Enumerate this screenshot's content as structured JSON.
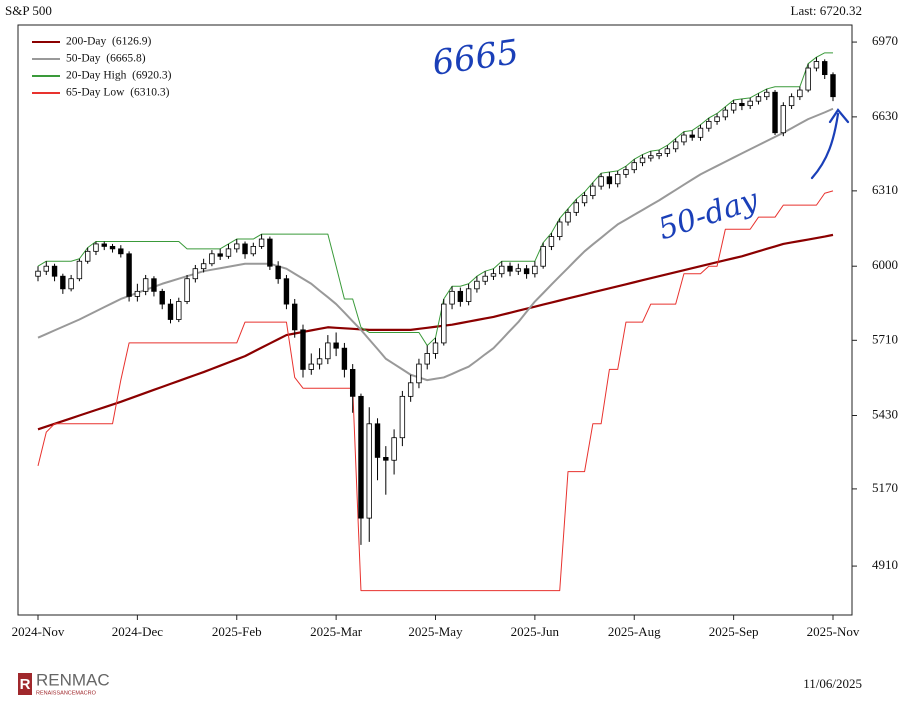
{
  "chart_data": {
    "type": "candlestick",
    "title": "S&P 500",
    "last": "Last: 6720.32",
    "date": "11/06/2025",
    "brand": "RENMAC",
    "brand_sub": "RENAISSANCEMACRO",
    "annotations": [
      "6665",
      "50-day"
    ],
    "log_y": true,
    "ylim": [
      4752,
      7050
    ],
    "yticks": [
      4910,
      5170,
      5430,
      5710,
      6000,
      6310,
      6630,
      6970
    ],
    "candle_color": "#000000",
    "categories": [
      "2024-Nov",
      null,
      null,
      null,
      null,
      null,
      null,
      null,
      null,
      null,
      null,
      null,
      "2024-Dec",
      null,
      null,
      null,
      null,
      null,
      null,
      null,
      null,
      null,
      null,
      null,
      "2025-Feb",
      null,
      null,
      null,
      null,
      null,
      null,
      null,
      null,
      null,
      null,
      null,
      "2025-Mar",
      null,
      null,
      null,
      null,
      null,
      null,
      null,
      null,
      null,
      null,
      null,
      "2025-May",
      null,
      null,
      null,
      null,
      null,
      null,
      null,
      null,
      null,
      null,
      null,
      "2025-Jun",
      null,
      null,
      null,
      null,
      null,
      null,
      null,
      null,
      null,
      null,
      null,
      "2025-Aug",
      null,
      null,
      null,
      null,
      null,
      null,
      null,
      null,
      null,
      null,
      null,
      "2025-Sep",
      null,
      null,
      null,
      null,
      null,
      null,
      null,
      null,
      null,
      null,
      null,
      "2025-Nov"
    ],
    "candles": {
      "open": [
        5960,
        5980,
        6000,
        5960,
        5910,
        5950,
        6020,
        6060,
        6090,
        6080,
        6070,
        6050,
        5880,
        5900,
        5950,
        5900,
        5850,
        5790,
        5860,
        5950,
        5990,
        6010,
        6050,
        6040,
        6070,
        6090,
        6050,
        6080,
        6110,
        6000,
        5950,
        5850,
        5750,
        5600,
        5620,
        5640,
        5700,
        5680,
        5600,
        5500,
        5070,
        5400,
        5280,
        5270,
        5350,
        5500,
        5550,
        5620,
        5660,
        5700,
        5850,
        5900,
        5860,
        5910,
        5940,
        5960,
        5970,
        6000,
        5980,
        5990,
        5970,
        6000,
        6080,
        6120,
        6180,
        6220,
        6260,
        6290,
        6330,
        6370,
        6340,
        6380,
        6400,
        6430,
        6450,
        6460,
        6470,
        6490,
        6520,
        6550,
        6540,
        6580,
        6610,
        6630,
        6660,
        6690,
        6680,
        6700,
        6720,
        6740,
        6560,
        6680,
        6720,
        6750,
        6850,
        6880,
        6820
      ],
      "high": [
        6000,
        6020,
        6010,
        5970,
        5965,
        6030,
        6075,
        6100,
        6100,
        6090,
        6085,
        6060,
        5930,
        5965,
        5960,
        5910,
        5870,
        5875,
        5965,
        6005,
        6030,
        6065,
        6070,
        6090,
        6110,
        6100,
        6095,
        6130,
        6120,
        6020,
        5965,
        5870,
        5770,
        5660,
        5680,
        5730,
        5740,
        5700,
        5620,
        5510,
        5460,
        5420,
        5320,
        5380,
        5520,
        5580,
        5640,
        5690,
        5720,
        5870,
        5920,
        5915,
        5930,
        5960,
        5980,
        5990,
        6020,
        6015,
        6010,
        6005,
        6020,
        6095,
        6135,
        6195,
        6235,
        6275,
        6305,
        6345,
        6385,
        6390,
        6395,
        6415,
        6445,
        6465,
        6480,
        6485,
        6505,
        6535,
        6565,
        6570,
        6595,
        6625,
        6645,
        6675,
        6705,
        6710,
        6715,
        6735,
        6755,
        6750,
        6695,
        6735,
        6765,
        6870,
        6900,
        6890,
        6830
      ],
      "low": [
        5940,
        5965,
        5940,
        5890,
        5900,
        5940,
        6010,
        6045,
        6065,
        6055,
        6035,
        5860,
        5860,
        5885,
        5880,
        5830,
        5775,
        5780,
        5850,
        5935,
        5975,
        6000,
        6025,
        6030,
        6055,
        6030,
        6040,
        6070,
        5985,
        5930,
        5830,
        5720,
        5570,
        5580,
        5600,
        5620,
        5650,
        5570,
        5440,
        4980,
        4990,
        5200,
        5150,
        5220,
        5320,
        5480,
        5530,
        5600,
        5640,
        5690,
        5830,
        5840,
        5845,
        5895,
        5925,
        5945,
        5955,
        5960,
        5965,
        5950,
        5955,
        5990,
        6065,
        6105,
        6165,
        6205,
        6245,
        6275,
        6315,
        6320,
        6325,
        6365,
        6385,
        6415,
        6435,
        6445,
        6455,
        6475,
        6505,
        6525,
        6525,
        6565,
        6595,
        6615,
        6645,
        6660,
        6665,
        6685,
        6705,
        6550,
        6545,
        6665,
        6705,
        6740,
        6835,
        6800,
        6700
      ],
      "close": [
        5980,
        6000,
        5960,
        5910,
        5950,
        6020,
        6060,
        6090,
        6080,
        6070,
        6050,
        5880,
        5900,
        5950,
        5900,
        5850,
        5790,
        5860,
        5950,
        5990,
        6010,
        6050,
        6040,
        6070,
        6090,
        6050,
        6080,
        6110,
        6000,
        5950,
        5850,
        5750,
        5600,
        5620,
        5640,
        5700,
        5680,
        5600,
        5500,
        5070,
        5400,
        5280,
        5270,
        5350,
        5500,
        5550,
        5620,
        5660,
        5700,
        5850,
        5900,
        5860,
        5910,
        5940,
        5960,
        5970,
        6000,
        5980,
        5990,
        5970,
        6000,
        6080,
        6120,
        6180,
        6220,
        6260,
        6290,
        6330,
        6370,
        6340,
        6380,
        6400,
        6430,
        6450,
        6460,
        6470,
        6490,
        6520,
        6550,
        6540,
        6580,
        6610,
        6630,
        6660,
        6690,
        6680,
        6700,
        6720,
        6740,
        6560,
        6680,
        6720,
        6750,
        6850,
        6880,
        6820,
        6720
      ]
    },
    "series": [
      {
        "name": "200-Day  (6126.9)",
        "color": "#8b0000",
        "width": 2.2,
        "values": [
          5380,
          5390,
          5400,
          5410,
          5420,
          5430,
          5440,
          5450,
          5460,
          5470,
          5480,
          5491,
          5502,
          5513,
          5524,
          5535,
          5546,
          5557,
          5568,
          5579,
          5590,
          5602,
          5614,
          5626,
          5638,
          5650,
          5666,
          5682,
          5698,
          5714,
          5730,
          5736,
          5742,
          5748,
          5754,
          5760,
          5758,
          5756,
          5754,
          5752,
          5750,
          5750,
          5750,
          5750,
          5750,
          5750,
          5754,
          5758,
          5762,
          5766,
          5770,
          5776,
          5782,
          5788,
          5794,
          5800,
          5808,
          5816,
          5824,
          5832,
          5840,
          5848,
          5856,
          5864,
          5872,
          5880,
          5888,
          5896,
          5904,
          5912,
          5920,
          5928,
          5936,
          5944,
          5952,
          5960,
          5968,
          5976,
          5984,
          5992,
          6000,
          6008,
          6016,
          6024,
          6032,
          6040,
          6050,
          6060,
          6070,
          6080,
          6090,
          6096,
          6102,
          6108,
          6114,
          6120,
          6127
        ]
      },
      {
        "name": "50-Day  (6665.8)",
        "color": "#999999",
        "width": 2,
        "values": [
          5720,
          5734,
          5748,
          5762,
          5776,
          5790,
          5806,
          5822,
          5838,
          5854,
          5870,
          5882,
          5894,
          5906,
          5918,
          5930,
          5940,
          5950,
          5960,
          5970,
          5980,
          5986,
          5992,
          5998,
          6004,
          6010,
          6010,
          6010,
          6010,
          6000,
          5990,
          5970,
          5950,
          5930,
          5903,
          5877,
          5850,
          5817,
          5783,
          5750,
          5713,
          5677,
          5640,
          5620,
          5600,
          5580,
          5570,
          5560,
          5565,
          5570,
          5583,
          5597,
          5610,
          5633,
          5657,
          5680,
          5713,
          5747,
          5780,
          5820,
          5860,
          5893,
          5927,
          5960,
          5993,
          6027,
          6060,
          6088,
          6115,
          6143,
          6170,
          6190,
          6210,
          6230,
          6250,
          6270,
          6292,
          6314,
          6336,
          6358,
          6380,
          6398,
          6416,
          6434,
          6452,
          6470,
          6488,
          6506,
          6524,
          6542,
          6560,
          6580,
          6600,
          6620,
          6635,
          6650,
          6666
        ]
      },
      {
        "name": "20-Day High  (6920.3)",
        "color": "#3a9a3a",
        "width": 1,
        "values": [
          6000,
          6020,
          6020,
          6020,
          6020,
          6030,
          6075,
          6100,
          6100,
          6100,
          6100,
          6100,
          6100,
          6100,
          6100,
          6100,
          6100,
          6100,
          6070,
          6070,
          6070,
          6070,
          6070,
          6090,
          6110,
          6110,
          6110,
          6130,
          6130,
          6130,
          6130,
          6130,
          6130,
          6130,
          6130,
          6130,
          6000,
          5870,
          5870,
          5760,
          5740,
          5740,
          5740,
          5740,
          5740,
          5740,
          5740,
          5690,
          5720,
          5870,
          5920,
          5920,
          5930,
          5960,
          5980,
          5990,
          6020,
          6020,
          6020,
          6020,
          6020,
          6095,
          6135,
          6195,
          6235,
          6275,
          6305,
          6345,
          6385,
          6390,
          6395,
          6415,
          6445,
          6465,
          6480,
          6485,
          6505,
          6535,
          6565,
          6570,
          6595,
          6625,
          6645,
          6675,
          6705,
          6710,
          6715,
          6735,
          6755,
          6765,
          6765,
          6765,
          6765,
          6870,
          6900,
          6920,
          6920
        ]
      },
      {
        "name": "65-Day Low  (6310.3)",
        "color": "#e8322e",
        "width": 1,
        "values": [
          5250,
          5370,
          5400,
          5400,
          5400,
          5400,
          5400,
          5400,
          5400,
          5400,
          5560,
          5700,
          5700,
          5700,
          5700,
          5700,
          5700,
          5700,
          5700,
          5700,
          5700,
          5700,
          5700,
          5700,
          5700,
          5780,
          5780,
          5780,
          5780,
          5780,
          5780,
          5570,
          5530,
          5530,
          5530,
          5530,
          5530,
          5530,
          5530,
          4830,
          4830,
          4830,
          4830,
          4830,
          4830,
          4830,
          4830,
          4830,
          4830,
          4830,
          4830,
          4830,
          4830,
          4830,
          4830,
          4830,
          4830,
          4830,
          4830,
          4830,
          4830,
          4830,
          4830,
          4830,
          5230,
          5230,
          5230,
          5400,
          5400,
          5600,
          5600,
          5780,
          5780,
          5780,
          5850,
          5850,
          5850,
          5850,
          5970,
          5970,
          5970,
          6000,
          6000,
          6150,
          6150,
          6150,
          6150,
          6200,
          6200,
          6200,
          6250,
          6250,
          6250,
          6250,
          6250,
          6300,
          6310
        ]
      }
    ]
  }
}
